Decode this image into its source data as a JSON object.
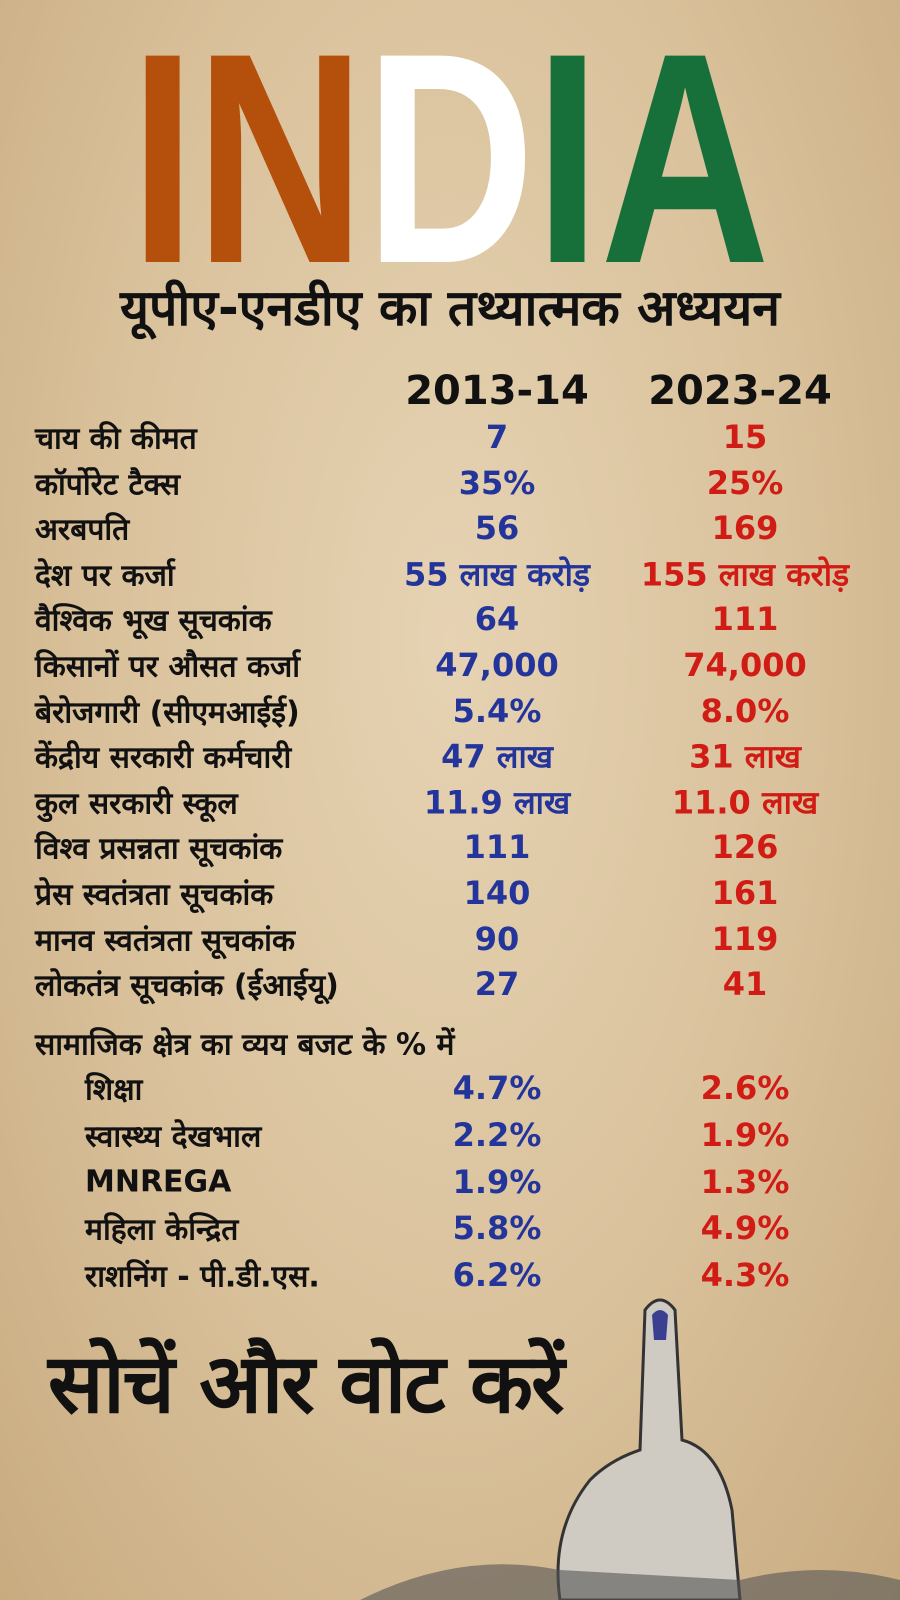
{
  "header": {
    "title_parts": [
      "IN",
      "D",
      "IA"
    ],
    "subtitle": "यूपीए-एनडीए का तथ्यात्मक अध्ययन"
  },
  "table": {
    "columns": [
      "2013-14",
      "2023-24"
    ],
    "rows": [
      [
        "चाय की कीमत",
        "7",
        "15"
      ],
      [
        "कॉर्पोरेट टैक्स",
        "35%",
        "25%"
      ],
      [
        "अरबपति",
        "56",
        "169"
      ],
      [
        "देश पर कर्जा",
        "55 लाख करोड़",
        "155 लाख करोड़"
      ],
      [
        "वैश्विक भूख सूचकांक",
        "64",
        "111"
      ],
      [
        "किसानों पर औसत कर्जा",
        "47,000",
        "74,000"
      ],
      [
        "बेरोजगारी (सीएमआईई)",
        "5.4%",
        "8.0%"
      ],
      [
        "केंद्रीय सरकारी कर्मचारी",
        "47 लाख",
        "31 लाख"
      ],
      [
        "कुल सरकारी स्कूल",
        "11.9 लाख",
        "11.0 लाख"
      ],
      [
        "विश्व प्रसन्नता सूचकांक",
        "111",
        "126"
      ],
      [
        "प्रेस स्वतंत्रता सूचकांक",
        "140",
        "161"
      ],
      [
        "मानव स्वतंत्रता सूचकांक",
        "90",
        "119"
      ],
      [
        "लोकतंत्र सूचकांक (ईआईयू)",
        "27",
        "41"
      ]
    ],
    "section": {
      "title": "सामाजिक क्षेत्र का व्यय बजट के % में",
      "rows": [
        [
          "शिक्षा",
          "4.7%",
          "2.6%"
        ],
        [
          "स्वास्थ्य देखभाल",
          "2.2%",
          "1.9%"
        ],
        [
          "MNREGA",
          "1.9%",
          "1.3%"
        ],
        [
          "महिला केन्द्रित",
          "5.8%",
          "4.9%"
        ],
        [
          "राशनिंग - पी.डी.एस.",
          "6.2%",
          "4.3%"
        ]
      ]
    }
  },
  "footer": {
    "slogan": "सोचें और वोट करें"
  }
}
